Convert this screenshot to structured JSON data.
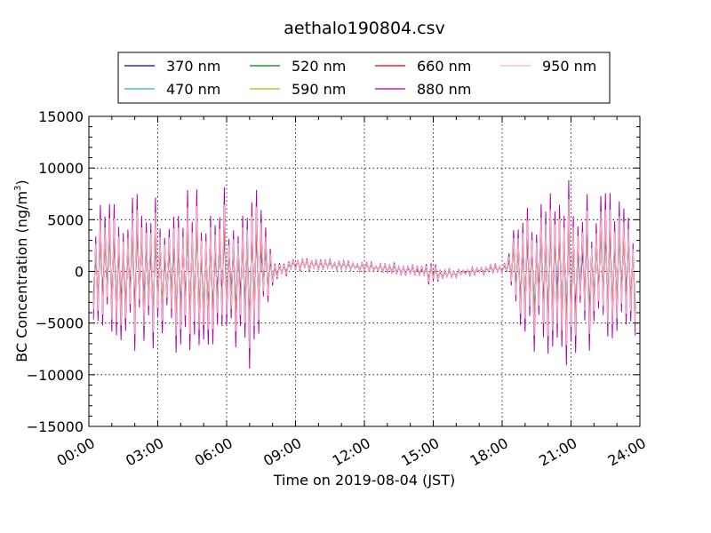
{
  "chart_data": {
    "type": "line",
    "title": "aethalo190804.csv",
    "xlabel": "Time on 2019-08-04 (JST)",
    "ylabel": "BC Concentration (ng/m",
    "ylabel_sup": "3",
    "ylabel_end": ")",
    "xlim": [
      0,
      24
    ],
    "ylim": [
      -15000,
      15000
    ],
    "grid": true,
    "legend_position": "top-center",
    "x_ticks": [
      0,
      3,
      6,
      9,
      12,
      15,
      18,
      21,
      24
    ],
    "x_tick_labels": [
      "00:00",
      "03:00",
      "06:00",
      "09:00",
      "12:00",
      "15:00",
      "18:00",
      "21:00",
      "24:00"
    ],
    "y_ticks": [
      -15000,
      -10000,
      -5000,
      0,
      5000,
      10000,
      15000
    ],
    "y_tick_labels": [
      "−15000",
      "−10000",
      "−5000",
      "0",
      "5000",
      "10000",
      "15000"
    ],
    "sampling": {
      "x_start": 0.2,
      "x_end": 23.8,
      "step_hours": 0.1
    },
    "envelope": [
      [
        0.2,
        5000
      ],
      [
        1.0,
        6000
      ],
      [
        2.0,
        7000
      ],
      [
        2.9,
        6500
      ],
      [
        3.1,
        5500
      ],
      [
        4.0,
        7000
      ],
      [
        5.0,
        7500
      ],
      [
        6.0,
        7000
      ],
      [
        7.0,
        9000
      ],
      [
        7.7,
        5000
      ],
      [
        8.0,
        1500
      ],
      [
        8.3,
        700
      ],
      [
        10.0,
        550
      ],
      [
        12.0,
        450
      ],
      [
        14.0,
        600
      ],
      [
        14.8,
        1000
      ],
      [
        15.5,
        550
      ],
      [
        17.0,
        350
      ],
      [
        18.2,
        500
      ],
      [
        18.6,
        4500
      ],
      [
        19.5,
        8000
      ],
      [
        20.5,
        8500
      ],
      [
        21.5,
        6500
      ],
      [
        22.5,
        6500
      ],
      [
        23.8,
        5500
      ]
    ],
    "baseline": [
      [
        0.2,
        0
      ],
      [
        8.3,
        0
      ],
      [
        9.0,
        700
      ],
      [
        11.5,
        450
      ],
      [
        13.0,
        300
      ],
      [
        14.5,
        0
      ],
      [
        15.5,
        -300
      ],
      [
        17.0,
        100
      ],
      [
        18.5,
        300
      ],
      [
        18.6,
        0
      ],
      [
        23.8,
        0
      ]
    ],
    "series": [
      {
        "name": "370 nm",
        "color": "#0000cc",
        "amp": 0.62,
        "phase": 0.9
      },
      {
        "name": "470 nm",
        "color": "#22bbaa",
        "amp": 0.66,
        "phase": 0.7
      },
      {
        "name": "520 nm",
        "color": "#008000",
        "amp": 0.7,
        "phase": 0.5
      },
      {
        "name": "590 nm",
        "color": "#b8b800",
        "amp": 0.78,
        "phase": 0.3
      },
      {
        "name": "660 nm",
        "color": "#e00000",
        "amp": 0.85,
        "phase": 0.15
      },
      {
        "name": "880 nm",
        "color": "#aa00aa",
        "amp": 1.2,
        "phase": 0.0
      },
      {
        "name": "950 nm",
        "color": "#ffb0c0",
        "amp": 0.95,
        "phase": 0.05
      }
    ]
  }
}
